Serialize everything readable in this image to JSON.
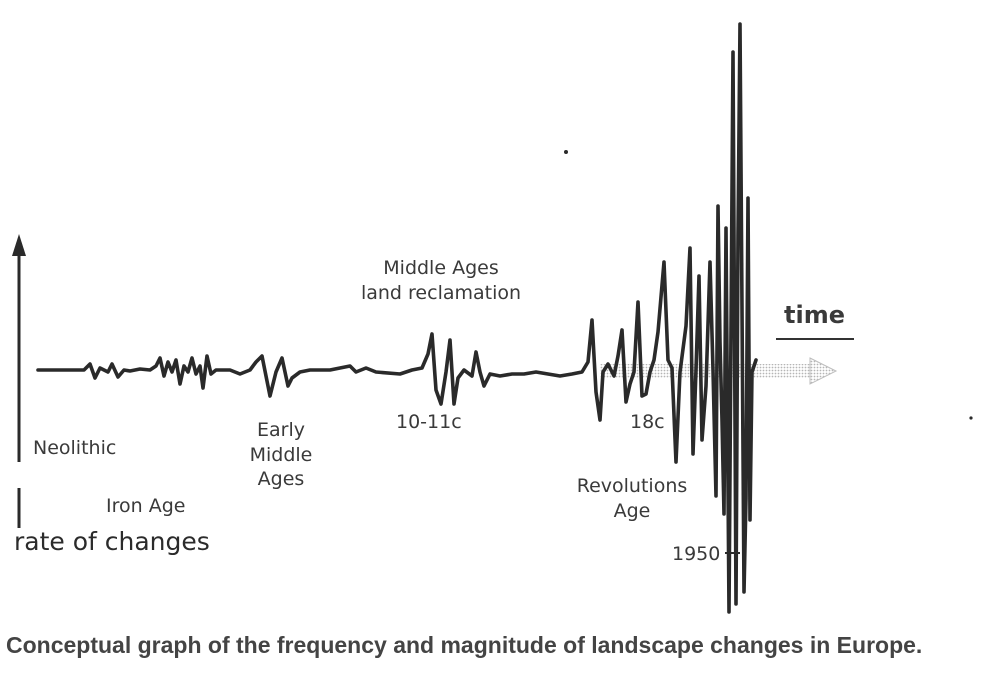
{
  "diagram": {
    "axis_label": "rate of changes",
    "time_label": "time",
    "caption": "Conceptual graph of the frequency and magnitude of landscape changes in Europe.",
    "periods": {
      "neolithic": "Neolithic",
      "iron_age": "Iron Age",
      "early_middle_ages": [
        "Early",
        "Middle",
        "Ages"
      ],
      "middle_ages_reclamation": [
        "Middle Ages",
        "land reclamation"
      ],
      "c10_11": "10-11c",
      "c18": "18c",
      "revolutions_age": [
        "Revolutions",
        "Age"
      ],
      "year_1950": "1950"
    },
    "colors": {
      "ink": "#2a2a2a",
      "arrow_fill": "#c8c8c8"
    }
  }
}
